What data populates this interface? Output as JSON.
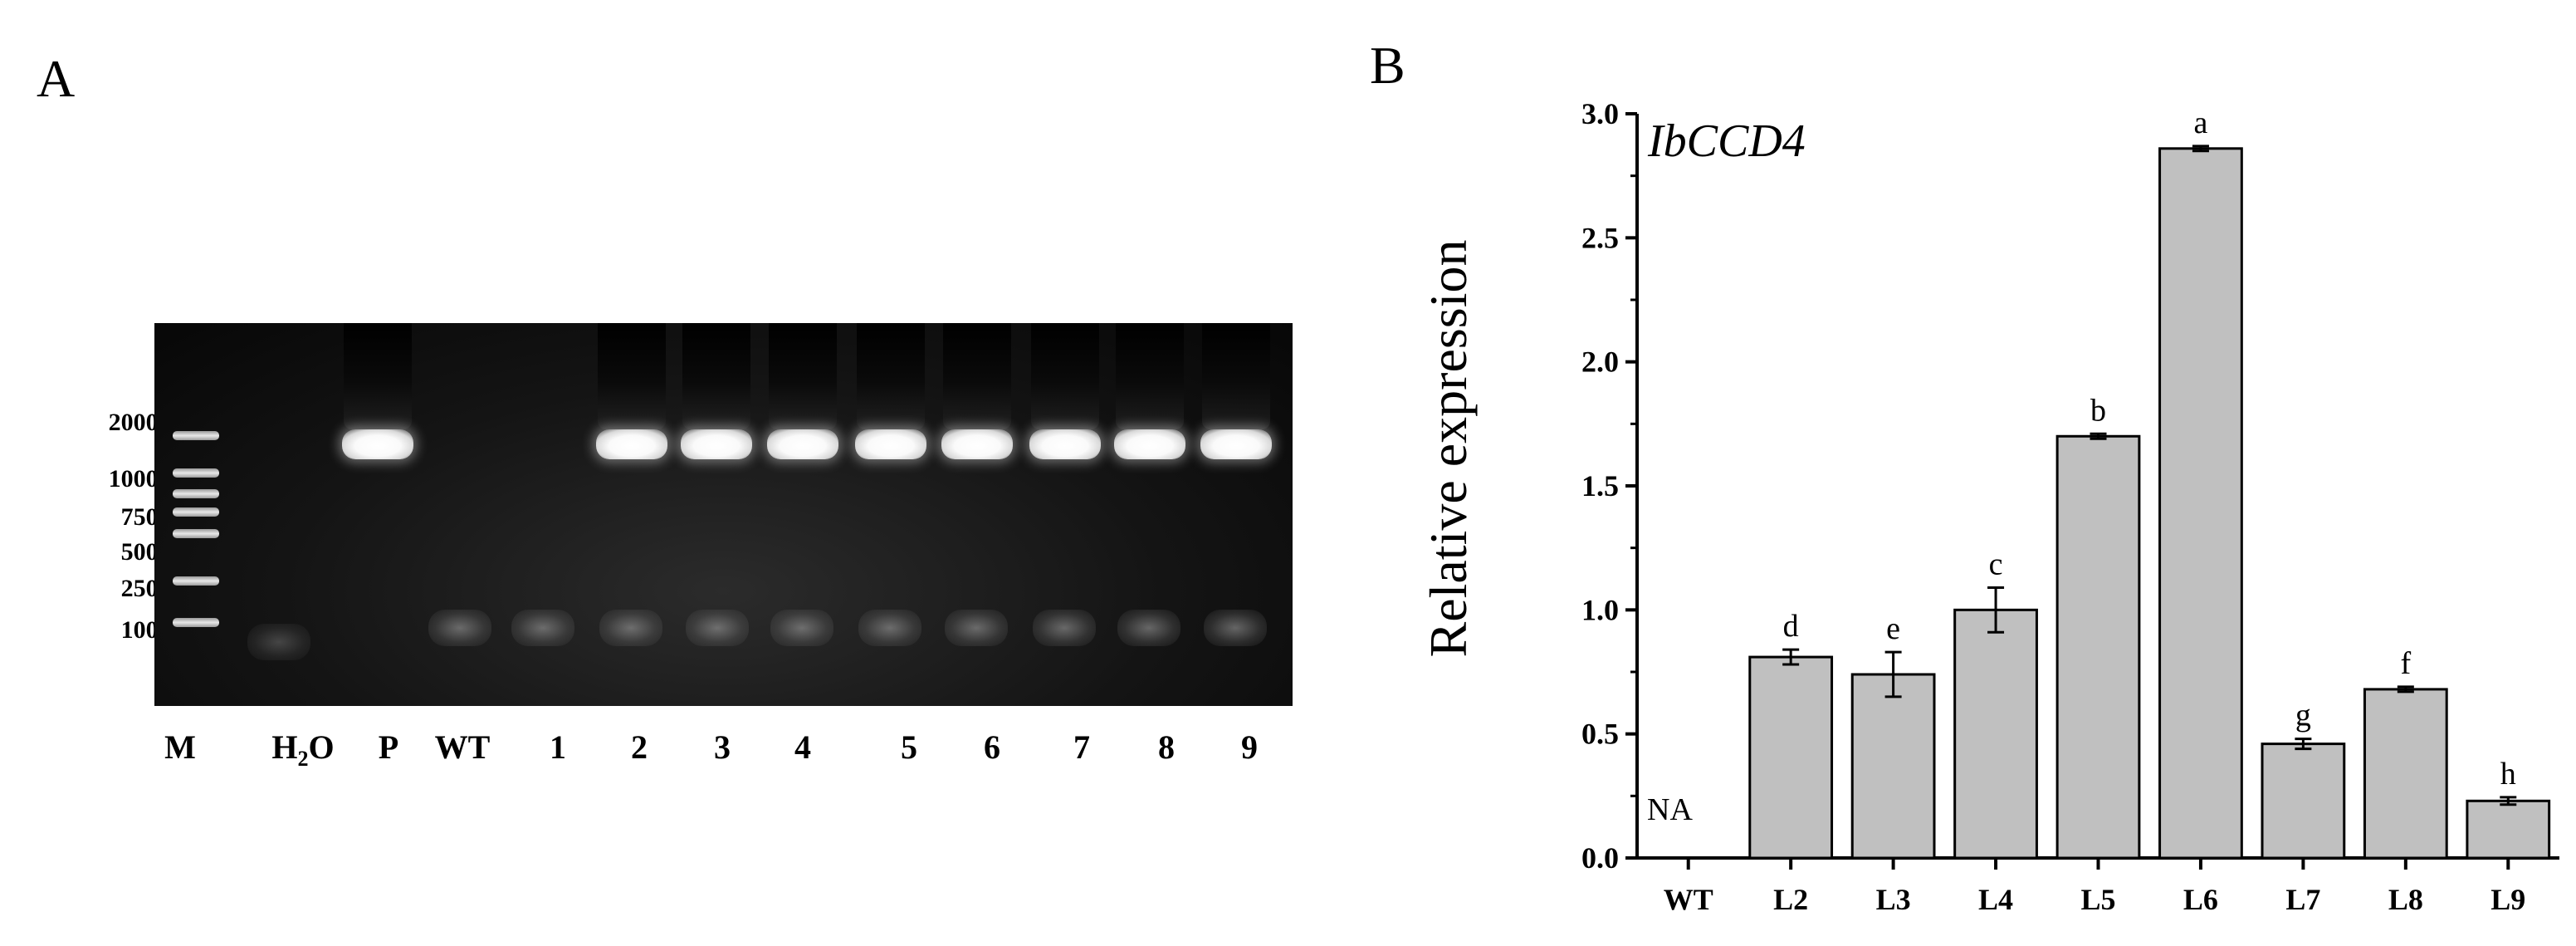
{
  "panel_a": {
    "letter": "A",
    "size_markers": [
      "2000bp",
      "1000bp",
      "750bp",
      "500bp",
      "250bp",
      "100bp"
    ],
    "lanes": [
      "M",
      "H2O",
      "P",
      "WT",
      "1",
      "2",
      "3",
      "4",
      "5",
      "6",
      "7",
      "8",
      "9"
    ],
    "h2o": {
      "base": "H",
      "sub": "2",
      "rest": "O"
    }
  },
  "panel_b": {
    "letter": "B",
    "gene_label": "IbCCD4",
    "na_label": "NA"
  },
  "chart_data": {
    "type": "bar",
    "title": "",
    "xlabel": "",
    "ylabel": "Relative expression",
    "categories": [
      "WT",
      "L2",
      "L3",
      "L4",
      "L5",
      "L6",
      "L7",
      "L8",
      "L9"
    ],
    "values": [
      0,
      0.81,
      0.74,
      1.0,
      1.7,
      2.86,
      0.46,
      0.68,
      0.23
    ],
    "errors": [
      0,
      0.03,
      0.09,
      0.09,
      0.01,
      0.01,
      0.02,
      0.01,
      0.015
    ],
    "significance": [
      "",
      "d",
      "e",
      "c",
      "b",
      "a",
      "g",
      "f",
      "h"
    ],
    "ylim": [
      0,
      3.0
    ],
    "yticks": [
      "0.0",
      "0.5",
      "1.0",
      "1.5",
      "2.0",
      "2.5",
      "3.0"
    ],
    "bar_color": "#c0c0c0",
    "grid": false
  }
}
